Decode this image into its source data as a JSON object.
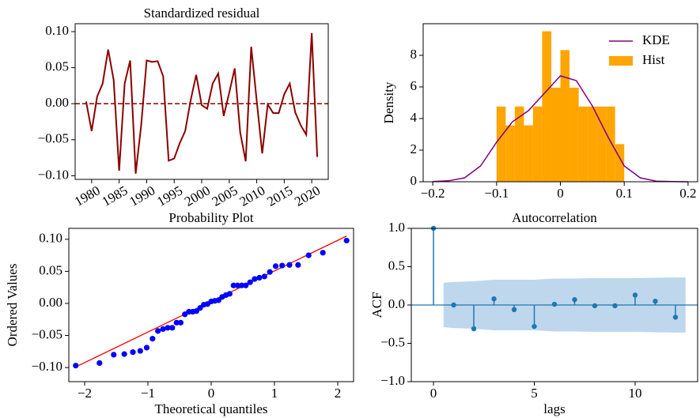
{
  "chart_data": [
    {
      "type": "line",
      "title": "Standardized residual",
      "x": [
        1979,
        1980,
        1981,
        1982,
        1983,
        1984,
        1985,
        1986,
        1987,
        1988,
        1989,
        1990,
        1991,
        1992,
        1993,
        1994,
        1995,
        1996,
        1997,
        1998,
        1999,
        2000,
        2001,
        2002,
        2003,
        2004,
        2005,
        2006,
        2007,
        2008,
        2009,
        2010,
        2011,
        2012,
        2013,
        2014,
        2015,
        2016,
        2017,
        2018,
        2019,
        2020,
        2021
      ],
      "values": [
        0.003,
        -0.038,
        0.01,
        0.028,
        0.075,
        0.033,
        -0.093,
        0.028,
        0.06,
        -0.097,
        -0.03,
        0.06,
        0.058,
        0.059,
        0.038,
        -0.079,
        -0.076,
        -0.055,
        -0.038,
        0.005,
        0.04,
        -0.002,
        -0.007,
        0.028,
        0.042,
        -0.017,
        0.015,
        0.049,
        -0.04,
        -0.08,
        0.079,
        0.004,
        -0.069,
        -0.001,
        -0.013,
        -0.013,
        0.013,
        0.028,
        -0.012,
        -0.03,
        -0.043,
        0.098,
        -0.074
      ],
      "color": "#8b0000",
      "hline": 0,
      "hline_style": "dashed",
      "xlim": [
        1977,
        2023
      ],
      "xticks": [
        1980,
        1985,
        1990,
        1995,
        2000,
        2005,
        2010,
        2015,
        2020
      ],
      "ylim": [
        -0.105,
        0.111
      ],
      "yticks": [
        {
          "value": -0.1,
          "label": "−0.10"
        },
        {
          "value": -0.05,
          "label": "−0.05"
        },
        {
          "value": 0,
          "label": "0.00"
        },
        {
          "value": 0.05,
          "label": "0.05"
        },
        {
          "value": 0.1,
          "label": "0.10"
        }
      ]
    },
    {
      "type": "histogram",
      "ylabel": "Density",
      "legend": "upper right",
      "bins": [
        -0.1,
        -0.0857,
        -0.0714,
        -0.0571,
        -0.0429,
        -0.0286,
        -0.0143,
        0,
        0.0143,
        0.0286,
        0.0429,
        0.0571,
        0.0714,
        0.0857,
        0.1
      ],
      "hist": {
        "name": "Hist",
        "color": "#ffa500",
        "values": [
          4.76,
          3.57,
          4.76,
          3.57,
          4.76,
          9.52,
          5.95,
          8.33,
          5.95,
          4.76,
          4.76,
          4.76,
          4.76,
          2.38
        ]
      },
      "kde": {
        "name": "KDE",
        "color": "#800080",
        "x": [
          -0.2,
          -0.175,
          -0.15,
          -0.125,
          -0.1,
          -0.075,
          -0.05,
          -0.025,
          0,
          0.025,
          0.05,
          0.075,
          0.1,
          0.125,
          0.15,
          0.175,
          0.2
        ],
        "values": [
          0.01,
          0.06,
          0.25,
          1.0,
          2.5,
          3.8,
          4.5,
          5.6,
          6.7,
          6.4,
          4.8,
          2.8,
          1.0,
          0.25,
          0.04,
          0.01,
          0
        ]
      },
      "xlim": [
        -0.215,
        0.215
      ],
      "xticks": [
        {
          "value": -0.2,
          "label": "−0.2"
        },
        {
          "value": -0.1,
          "label": "−0.1"
        },
        0.0,
        0.1,
        0.2
      ],
      "ylim": [
        0,
        10
      ],
      "yticks": [
        0,
        2,
        4,
        6,
        8
      ]
    },
    {
      "type": "scatter",
      "title": "Probability Plot",
      "xlabel": "Theoretical quantiles",
      "ylabel": "Ordered Values",
      "x": [
        -2.14,
        -1.765,
        -1.54,
        -1.373,
        -1.237,
        -1.121,
        -1.019,
        -0.927,
        -0.842,
        -0.762,
        -0.687,
        -0.615,
        -0.547,
        -0.482,
        -0.416,
        -0.353,
        -0.292,
        -0.233,
        -0.174,
        -0.116,
        -0.058,
        0,
        0.058,
        0.116,
        0.174,
        0.233,
        0.292,
        0.353,
        0.416,
        0.482,
        0.547,
        0.615,
        0.687,
        0.762,
        0.842,
        0.927,
        1.019,
        1.121,
        1.237,
        1.373,
        1.54,
        1.765,
        2.14
      ],
      "values": [
        -0.097,
        -0.093,
        -0.08,
        -0.079,
        -0.076,
        -0.074,
        -0.069,
        -0.055,
        -0.043,
        -0.04,
        -0.038,
        -0.038,
        -0.03,
        -0.03,
        -0.017,
        -0.013,
        -0.013,
        -0.012,
        -0.007,
        -0.002,
        -0.001,
        0.003,
        0.004,
        0.005,
        0.01,
        0.013,
        0.015,
        0.028,
        0.028,
        0.028,
        0.028,
        0.033,
        0.038,
        0.04,
        0.042,
        0.049,
        0.058,
        0.059,
        0.06,
        0.06,
        0.075,
        0.079,
        0.098
      ],
      "color": "#0000ff",
      "fit": {
        "color": "#ff0000",
        "x": [
          -2.14,
          2.14
        ],
        "y": [
          -0.099,
          0.105
        ]
      },
      "xlim": [
        -2.25,
        2.25
      ],
      "xticks": [
        {
          "value": -2,
          "label": "−2"
        },
        {
          "value": -1,
          "label": "−1"
        },
        0,
        1,
        2
      ],
      "ylim": [
        -0.122,
        0.117
      ],
      "yticks": [
        {
          "value": -0.1,
          "label": "−0.10"
        },
        {
          "value": -0.05,
          "label": "−0.05"
        },
        {
          "value": 0,
          "label": "0.00"
        },
        {
          "value": 0.05,
          "label": "0.05"
        },
        {
          "value": 0.1,
          "label": "0.10"
        }
      ]
    },
    {
      "type": "acf",
      "title": "Autocorrelation",
      "xlabel": "lags",
      "ylabel": "ACF",
      "x": [
        0,
        1,
        2,
        3,
        4,
        5,
        6,
        7,
        8,
        9,
        10,
        11,
        12
      ],
      "values": [
        1.0,
        0.0,
        -0.31,
        0.08,
        -0.06,
        -0.28,
        0.01,
        0.07,
        -0.01,
        -0.01,
        0.13,
        0.05,
        -0.16
      ],
      "color": "#1f77b4",
      "confint_x": [
        0.5,
        1,
        2,
        3,
        4,
        5,
        6,
        7,
        8,
        9,
        10,
        11,
        12,
        12.5
      ],
      "confint": [
        0.29,
        0.3,
        0.31,
        0.33,
        0.33,
        0.33,
        0.345,
        0.345,
        0.35,
        0.35,
        0.35,
        0.355,
        0.36,
        0.36
      ],
      "confint_color": "#aecde8",
      "xlim": [
        -1.1,
        13.1
      ],
      "xticks": [
        0,
        5,
        10
      ],
      "ylim": [
        -1,
        1
      ],
      "yticks": [
        {
          "value": -1,
          "label": "−1.0"
        },
        {
          "value": -0.5,
          "label": "−0.5"
        },
        {
          "value": 0,
          "label": "0.0"
        },
        {
          "value": 0.5,
          "label": "0.5"
        },
        {
          "value": 1,
          "label": "1.0"
        }
      ]
    }
  ]
}
